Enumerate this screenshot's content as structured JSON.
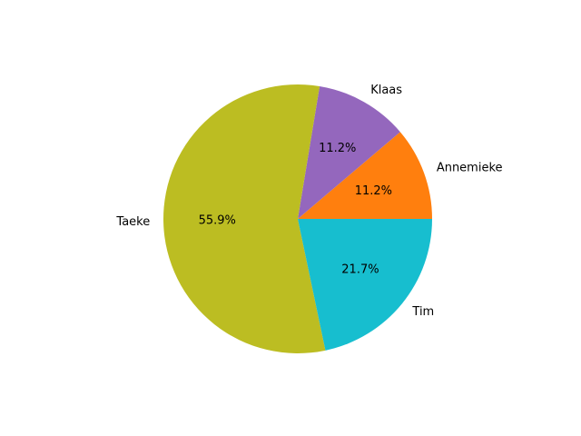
{
  "chart_data": {
    "type": "pie",
    "title": "",
    "slices": [
      {
        "label": "Annemieke",
        "value": 11.2,
        "pct_text": "11.2%",
        "color": "#ff7f0e"
      },
      {
        "label": "Klaas",
        "value": 11.2,
        "pct_text": "11.2%",
        "color": "#9467bd"
      },
      {
        "label": "Taeke",
        "value": 55.9,
        "pct_text": "55.9%",
        "color": "#bcbd22"
      },
      {
        "label": "Tim",
        "value": 21.7,
        "pct_text": "21.7%",
        "color": "#17becf"
      }
    ],
    "start_angle_deg": 0,
    "direction": "counterclockwise",
    "legend": "none"
  }
}
